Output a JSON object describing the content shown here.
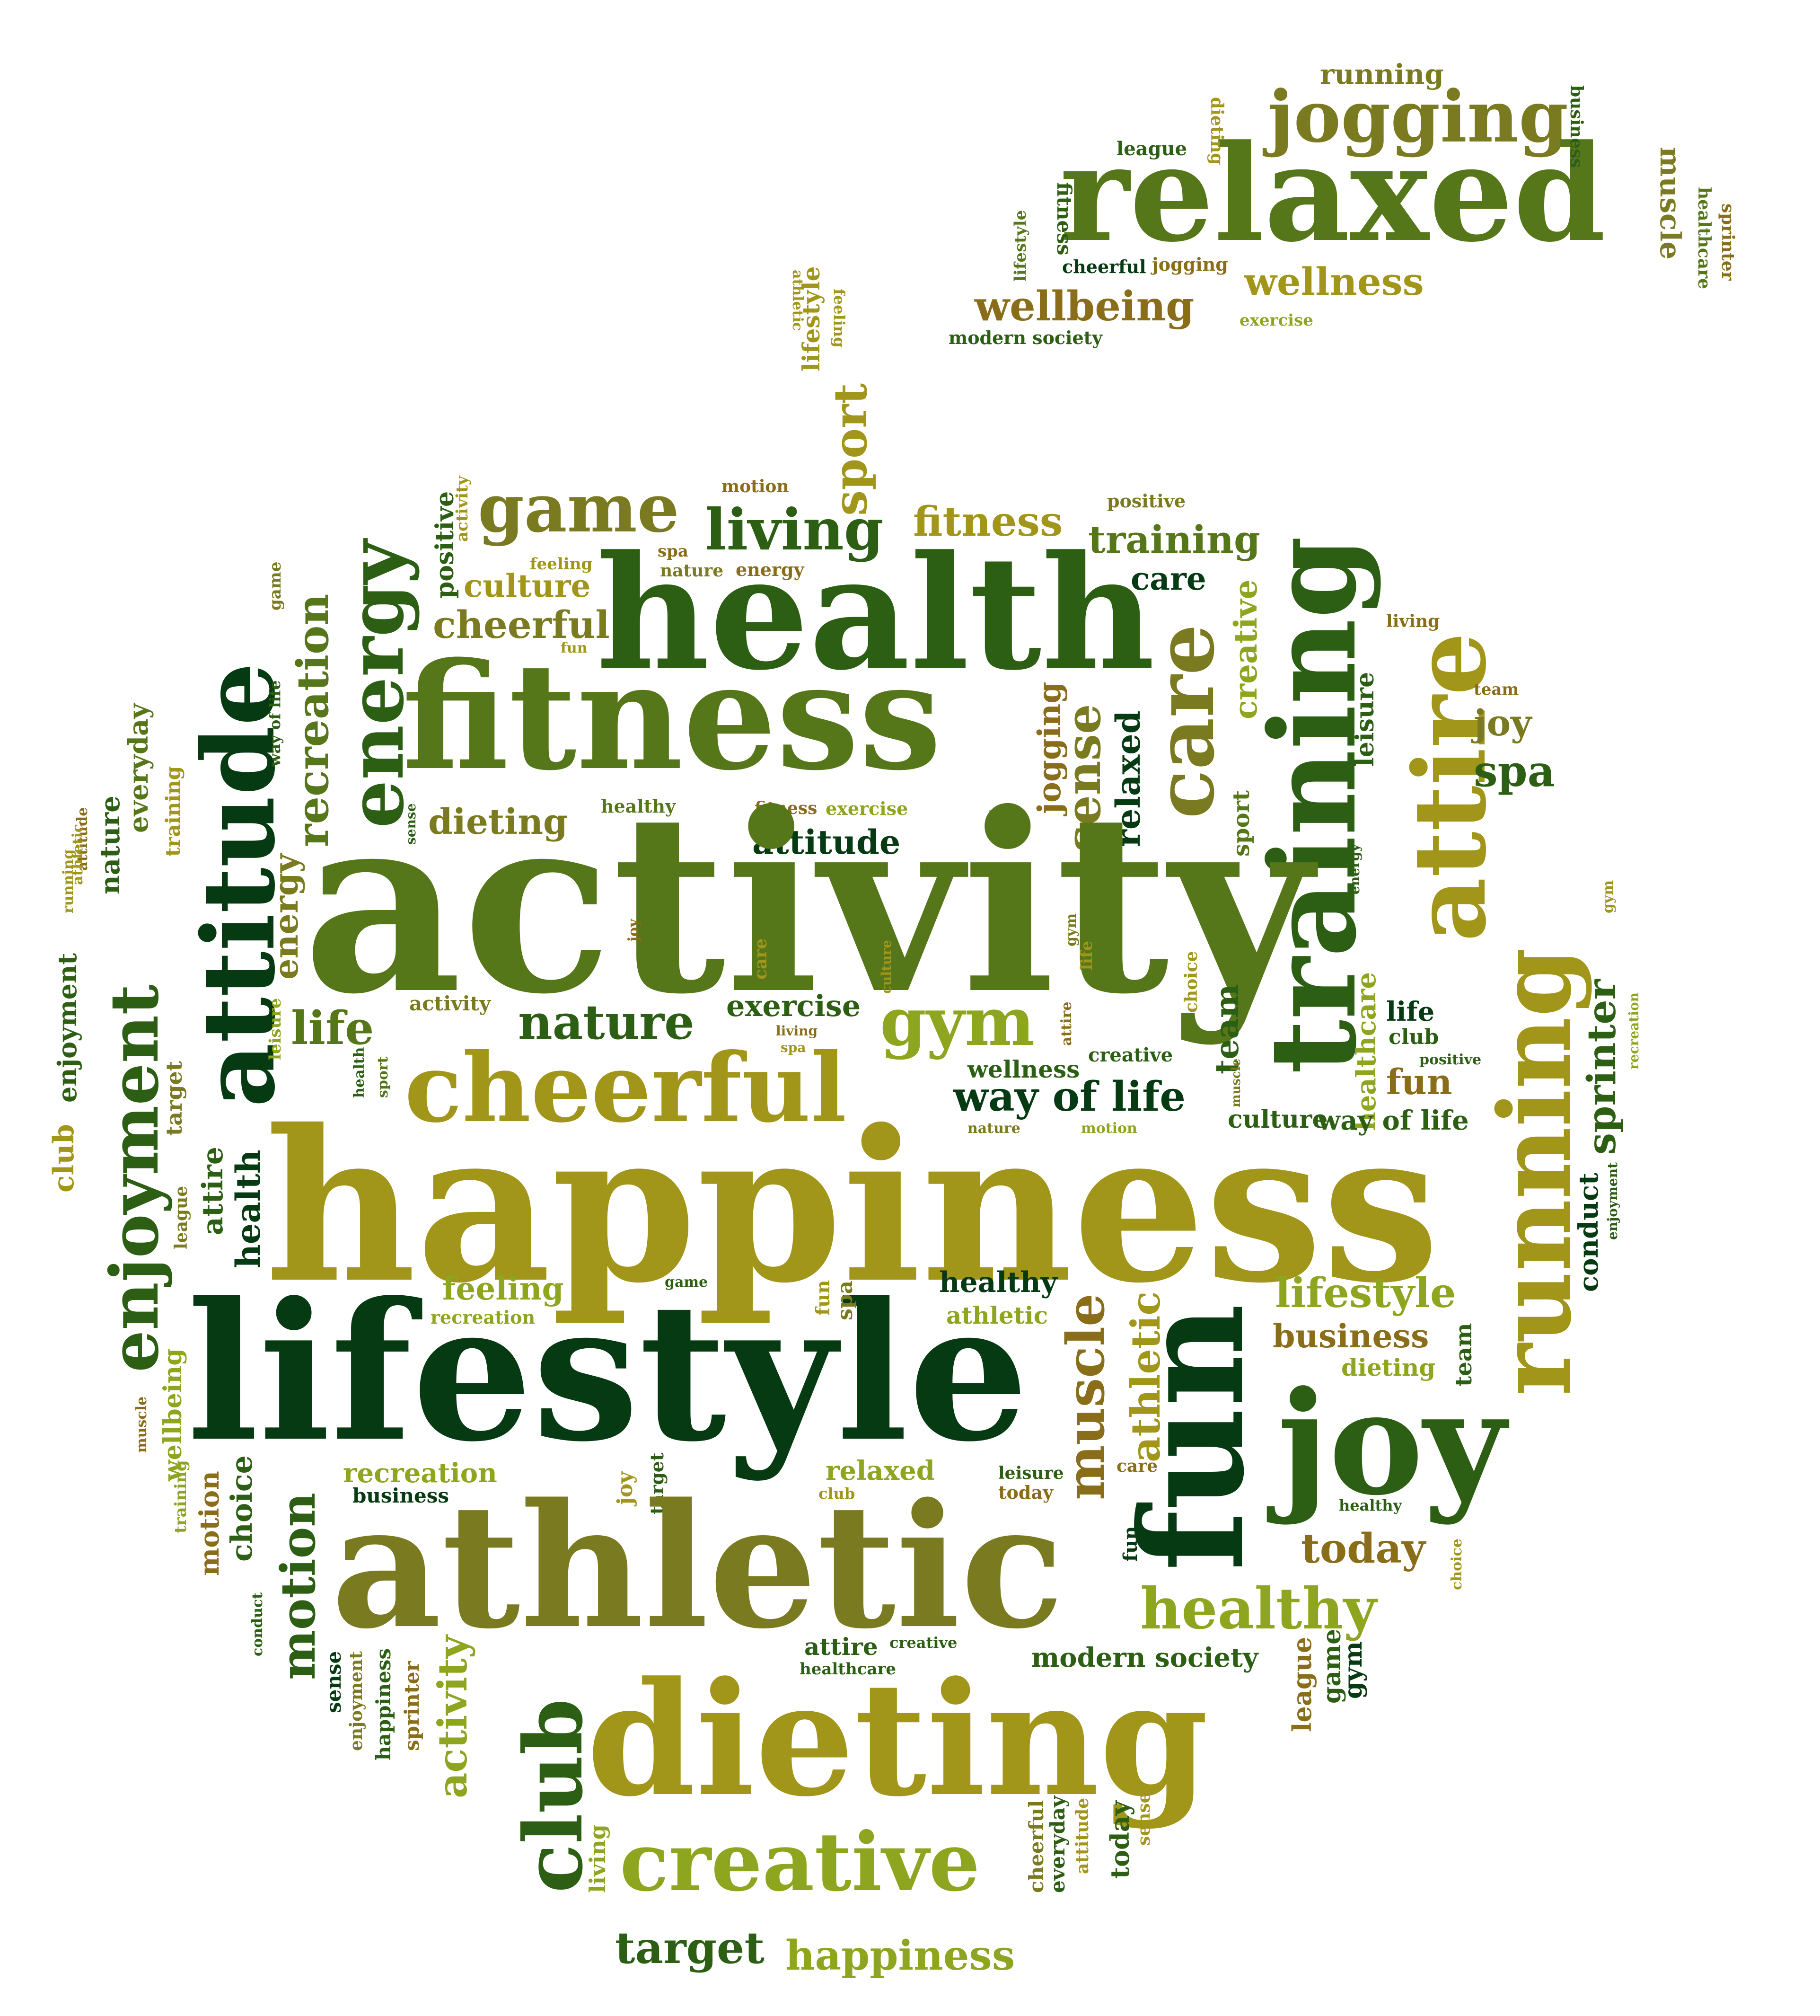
{
  "colors": {
    "dark": "#063a12",
    "forest": "#2c5f13",
    "grass": "#56761a",
    "olive": "#7a7a20",
    "gold": "#a1961a",
    "lime": "#8ea51f",
    "brown": "#8a6d18"
  },
  "stem_words": [
    {
      "text": "running",
      "c": "olive",
      "o": "h"
    },
    {
      "text": "jogging",
      "c": "olive",
      "o": "h"
    },
    {
      "text": "relaxed",
      "c": "grass",
      "o": "h"
    },
    {
      "text": "league",
      "c": "forest",
      "o": "h"
    },
    {
      "text": "dieting",
      "c": "gold",
      "o": "d"
    },
    {
      "text": "business",
      "c": "forest",
      "o": "d"
    },
    {
      "text": "muscle",
      "c": "olive",
      "o": "d"
    },
    {
      "text": "healthcare",
      "c": "grass",
      "o": "d"
    },
    {
      "text": "sprinter",
      "c": "brown",
      "o": "d"
    },
    {
      "text": "fitness",
      "c": "forest",
      "o": "d"
    },
    {
      "text": "lifestyle",
      "c": "grass",
      "o": "u"
    },
    {
      "text": "cheerful",
      "c": "dark",
      "o": "h"
    },
    {
      "text": "jogging",
      "c": "brown",
      "o": "h"
    },
    {
      "text": "wellness",
      "c": "gold",
      "o": "h"
    },
    {
      "text": "wellbeing",
      "c": "brown",
      "o": "h"
    },
    {
      "text": "exercise",
      "c": "lime",
      "o": "h"
    },
    {
      "text": "modern society",
      "c": "forest",
      "o": "h"
    },
    {
      "text": "athletic",
      "c": "gold",
      "o": "d"
    },
    {
      "text": "lifestyle",
      "c": "gold",
      "o": "u"
    },
    {
      "text": "feeling",
      "c": "gold",
      "o": "d"
    },
    {
      "text": "sport",
      "c": "gold",
      "o": "u"
    }
  ],
  "apple_words": [
    {
      "text": "motion",
      "c": "brown",
      "o": "h"
    },
    {
      "text": "game",
      "c": "olive",
      "o": "h"
    },
    {
      "text": "living",
      "c": "forest",
      "o": "h"
    },
    {
      "text": "fitness",
      "c": "gold",
      "o": "h"
    },
    {
      "text": "positive",
      "c": "olive",
      "o": "h"
    },
    {
      "text": "training",
      "c": "grass",
      "o": "h"
    },
    {
      "text": "positive",
      "c": "forest",
      "o": "u"
    },
    {
      "text": "activity",
      "c": "gold",
      "o": "u"
    },
    {
      "text": "health",
      "c": "forest",
      "o": "h"
    },
    {
      "text": "spa",
      "c": "brown",
      "o": "h"
    },
    {
      "text": "nature",
      "c": "olive",
      "o": "h"
    },
    {
      "text": "energy",
      "c": "brown",
      "o": "h"
    },
    {
      "text": "feeling",
      "c": "gold",
      "o": "h"
    },
    {
      "text": "culture",
      "c": "gold",
      "o": "h"
    },
    {
      "text": "cheerful",
      "c": "olive",
      "o": "h"
    },
    {
      "text": "fun",
      "c": "gold",
      "o": "h"
    },
    {
      "text": "care",
      "c": "dark",
      "o": "h"
    },
    {
      "text": "care",
      "c": "olive",
      "o": "u"
    },
    {
      "text": "creative",
      "c": "lime",
      "o": "u"
    },
    {
      "text": "training",
      "c": "forest",
      "o": "u"
    },
    {
      "text": "attire",
      "c": "gold",
      "o": "u"
    },
    {
      "text": "living",
      "c": "brown",
      "o": "h"
    },
    {
      "text": "leisure",
      "c": "forest",
      "o": "u"
    },
    {
      "text": "team",
      "c": "brown",
      "o": "h"
    },
    {
      "text": "joy",
      "c": "olive",
      "o": "h"
    },
    {
      "text": "spa",
      "c": "forest",
      "o": "h"
    },
    {
      "text": "running",
      "c": "gold",
      "o": "u"
    },
    {
      "text": "energy",
      "c": "forest",
      "o": "u"
    },
    {
      "text": "recreation",
      "c": "grass",
      "o": "u"
    },
    {
      "text": "game",
      "c": "olive",
      "o": "u"
    },
    {
      "text": "attitude",
      "c": "dark",
      "o": "u"
    },
    {
      "text": "way of life",
      "c": "forest",
      "o": "u"
    },
    {
      "text": "fitness",
      "c": "grass",
      "o": "h"
    },
    {
      "text": "jogging",
      "c": "brown",
      "o": "u"
    },
    {
      "text": "sense",
      "c": "olive",
      "o": "u"
    },
    {
      "text": "relaxed",
      "c": "dark",
      "o": "u"
    },
    {
      "text": "dieting",
      "c": "olive",
      "o": "h"
    },
    {
      "text": "healthy",
      "c": "grass",
      "o": "h"
    },
    {
      "text": "fitness",
      "c": "brown",
      "o": "h"
    },
    {
      "text": "exercise",
      "c": "lime",
      "o": "h"
    },
    {
      "text": "attitude",
      "c": "dark",
      "o": "h"
    },
    {
      "text": "life",
      "c": "forest",
      "o": "h"
    },
    {
      "text": "sport",
      "c": "grass",
      "o": "u"
    },
    {
      "text": "everyday",
      "c": "grass",
      "o": "u"
    },
    {
      "text": "nature",
      "c": "forest",
      "o": "u"
    },
    {
      "text": "training",
      "c": "gold",
      "o": "u"
    },
    {
      "text": "sense",
      "c": "forest",
      "o": "u"
    },
    {
      "text": "attitude",
      "c": "brown",
      "o": "u"
    },
    {
      "text": "athletic",
      "c": "gold",
      "o": "u"
    },
    {
      "text": "enjoyment",
      "c": "forest",
      "o": "u"
    },
    {
      "text": "enjoyment",
      "c": "forest",
      "o": "u"
    },
    {
      "text": "activity",
      "c": "grass",
      "o": "h"
    },
    {
      "text": "energy",
      "c": "olive",
      "o": "u"
    },
    {
      "text": "joy",
      "c": "brown",
      "o": "u"
    },
    {
      "text": "care",
      "c": "gold",
      "o": "u"
    },
    {
      "text": "culture",
      "c": "gold",
      "o": "u"
    },
    {
      "text": "gym",
      "c": "olive",
      "o": "u"
    },
    {
      "text": "life",
      "c": "gold",
      "o": "u"
    },
    {
      "text": "choice",
      "c": "gold",
      "o": "u"
    },
    {
      "text": "team",
      "c": "forest",
      "o": "u"
    },
    {
      "text": "energy",
      "c": "forest",
      "o": "u"
    },
    {
      "text": "gym",
      "c": "gold",
      "o": "u"
    },
    {
      "text": "healthcare",
      "c": "lime",
      "o": "u"
    },
    {
      "text": "sprinter",
      "c": "forest",
      "o": "u"
    },
    {
      "text": "recreation",
      "c": "lime",
      "o": "u"
    },
    {
      "text": "activity",
      "c": "olive",
      "o": "h"
    },
    {
      "text": "leisure",
      "c": "lime",
      "o": "u"
    },
    {
      "text": "life",
      "c": "grass",
      "o": "h"
    },
    {
      "text": "nature",
      "c": "forest",
      "o": "h"
    },
    {
      "text": "exercise",
      "c": "forest",
      "o": "h"
    },
    {
      "text": "gym",
      "c": "lime",
      "o": "h"
    },
    {
      "text": "attire",
      "c": "brown",
      "o": "u"
    },
    {
      "text": "living",
      "c": "brown",
      "o": "h"
    },
    {
      "text": "spa",
      "c": "gold",
      "o": "h"
    },
    {
      "text": "cheerful",
      "c": "gold",
      "o": "h"
    },
    {
      "text": "wellness",
      "c": "forest",
      "o": "h"
    },
    {
      "text": "creative",
      "c": "forest",
      "o": "h"
    },
    {
      "text": "muscle",
      "c": "olive",
      "o": "u"
    },
    {
      "text": "life",
      "c": "dark",
      "o": "h"
    },
    {
      "text": "club",
      "c": "forest",
      "o": "h"
    },
    {
      "text": "positive",
      "c": "forest",
      "o": "h"
    },
    {
      "text": "fun",
      "c": "brown",
      "o": "h"
    },
    {
      "text": "health",
      "c": "forest",
      "o": "u"
    },
    {
      "text": "sport",
      "c": "grass",
      "o": "u"
    },
    {
      "text": "way of life",
      "c": "dark",
      "o": "h"
    },
    {
      "text": "nature",
      "c": "olive",
      "o": "h"
    },
    {
      "text": "motion",
      "c": "lime",
      "o": "h"
    },
    {
      "text": "culture",
      "c": "forest",
      "o": "h"
    },
    {
      "text": "way of life",
      "c": "forest",
      "o": "h"
    },
    {
      "text": "target",
      "c": "olive",
      "o": "u"
    },
    {
      "text": "club",
      "c": "gold",
      "o": "u"
    },
    {
      "text": "attire",
      "c": "forest",
      "o": "u"
    },
    {
      "text": "health",
      "c": "dark",
      "o": "u"
    },
    {
      "text": "league",
      "c": "olive",
      "o": "u"
    },
    {
      "text": "happiness",
      "c": "gold",
      "o": "h"
    },
    {
      "text": "conduct",
      "c": "dark",
      "o": "u"
    },
    {
      "text": "enjoyment",
      "c": "forest",
      "o": "u"
    },
    {
      "text": "feeling",
      "c": "lime",
      "o": "h"
    },
    {
      "text": "recreation",
      "c": "lime",
      "o": "h"
    },
    {
      "text": "game",
      "c": "forest",
      "o": "h"
    },
    {
      "text": "lifestyle",
      "c": "dark",
      "o": "h"
    },
    {
      "text": "fun",
      "c": "gold",
      "o": "u"
    },
    {
      "text": "spa",
      "c": "olive",
      "o": "u"
    },
    {
      "text": "healthy",
      "c": "dark",
      "o": "h"
    },
    {
      "text": "athletic",
      "c": "lime",
      "o": "h"
    },
    {
      "text": "muscle",
      "c": "brown",
      "o": "u"
    },
    {
      "text": "athletic",
      "c": "gold",
      "o": "u"
    },
    {
      "text": "fun",
      "c": "dark",
      "o": "u"
    },
    {
      "text": "lifestyle",
      "c": "lime",
      "o": "h"
    },
    {
      "text": "business",
      "c": "brown",
      "o": "h"
    },
    {
      "text": "dieting",
      "c": "lime",
      "o": "h"
    },
    {
      "text": "team",
      "c": "forest",
      "o": "u"
    },
    {
      "text": "running",
      "c": "gold",
      "o": "u"
    },
    {
      "text": "joy",
      "c": "forest",
      "o": "h"
    },
    {
      "text": "muscle",
      "c": "brown",
      "o": "u"
    },
    {
      "text": "wellbeing",
      "c": "lime",
      "o": "u"
    },
    {
      "text": "training",
      "c": "lime",
      "o": "u"
    },
    {
      "text": "choice",
      "c": "forest",
      "o": "u"
    },
    {
      "text": "recreation",
      "c": "lime",
      "o": "h"
    },
    {
      "text": "business",
      "c": "dark",
      "o": "h"
    },
    {
      "text": "joy",
      "c": "gold",
      "o": "u"
    },
    {
      "text": "target",
      "c": "forest",
      "o": "u"
    },
    {
      "text": "relaxed",
      "c": "lime",
      "o": "h"
    },
    {
      "text": "club",
      "c": "gold",
      "o": "h"
    },
    {
      "text": "leisure",
      "c": "forest",
      "o": "h"
    },
    {
      "text": "today",
      "c": "brown",
      "o": "h"
    },
    {
      "text": "care",
      "c": "brown",
      "o": "h"
    },
    {
      "text": "healthy",
      "c": "forest",
      "o": "h"
    },
    {
      "text": "choice",
      "c": "gold",
      "o": "u"
    },
    {
      "text": "motion",
      "c": "brown",
      "o": "u"
    },
    {
      "text": "athletic",
      "c": "olive",
      "o": "h"
    },
    {
      "text": "fun",
      "c": "dark",
      "o": "u"
    },
    {
      "text": "today",
      "c": "brown",
      "o": "h"
    },
    {
      "text": "healthy",
      "c": "lime",
      "o": "h"
    },
    {
      "text": "conduct",
      "c": "forest",
      "o": "u"
    },
    {
      "text": "motion",
      "c": "forest",
      "o": "u"
    },
    {
      "text": "attire",
      "c": "forest",
      "o": "h"
    },
    {
      "text": "creative",
      "c": "forest",
      "o": "h"
    },
    {
      "text": "healthcare",
      "c": "forest",
      "o": "h"
    },
    {
      "text": "modern society",
      "c": "forest",
      "o": "h"
    },
    {
      "text": "sense",
      "c": "dark",
      "o": "u"
    },
    {
      "text": "enjoyment",
      "c": "olive",
      "o": "u"
    },
    {
      "text": "happiness",
      "c": "forest",
      "o": "u"
    },
    {
      "text": "sprinter",
      "c": "brown",
      "o": "u"
    },
    {
      "text": "activity",
      "c": "lime",
      "o": "u"
    },
    {
      "text": "club",
      "c": "forest",
      "o": "u"
    },
    {
      "text": "dieting",
      "c": "gold",
      "o": "h"
    },
    {
      "text": "league",
      "c": "brown",
      "o": "u"
    },
    {
      "text": "game",
      "c": "forest",
      "o": "u"
    },
    {
      "text": "gym",
      "c": "dark",
      "o": "u"
    },
    {
      "text": "creative",
      "c": "lime",
      "o": "h"
    },
    {
      "text": "living",
      "c": "lime",
      "o": "u"
    },
    {
      "text": "cheerful",
      "c": "olive",
      "o": "u"
    },
    {
      "text": "everyday",
      "c": "forest",
      "o": "u"
    },
    {
      "text": "attitude",
      "c": "gold",
      "o": "u"
    },
    {
      "text": "today",
      "c": "forest",
      "o": "u"
    },
    {
      "text": "sense",
      "c": "gold",
      "o": "u"
    },
    {
      "text": "target",
      "c": "forest",
      "o": "h"
    },
    {
      "text": "happiness",
      "c": "lime",
      "o": "h"
    }
  ]
}
